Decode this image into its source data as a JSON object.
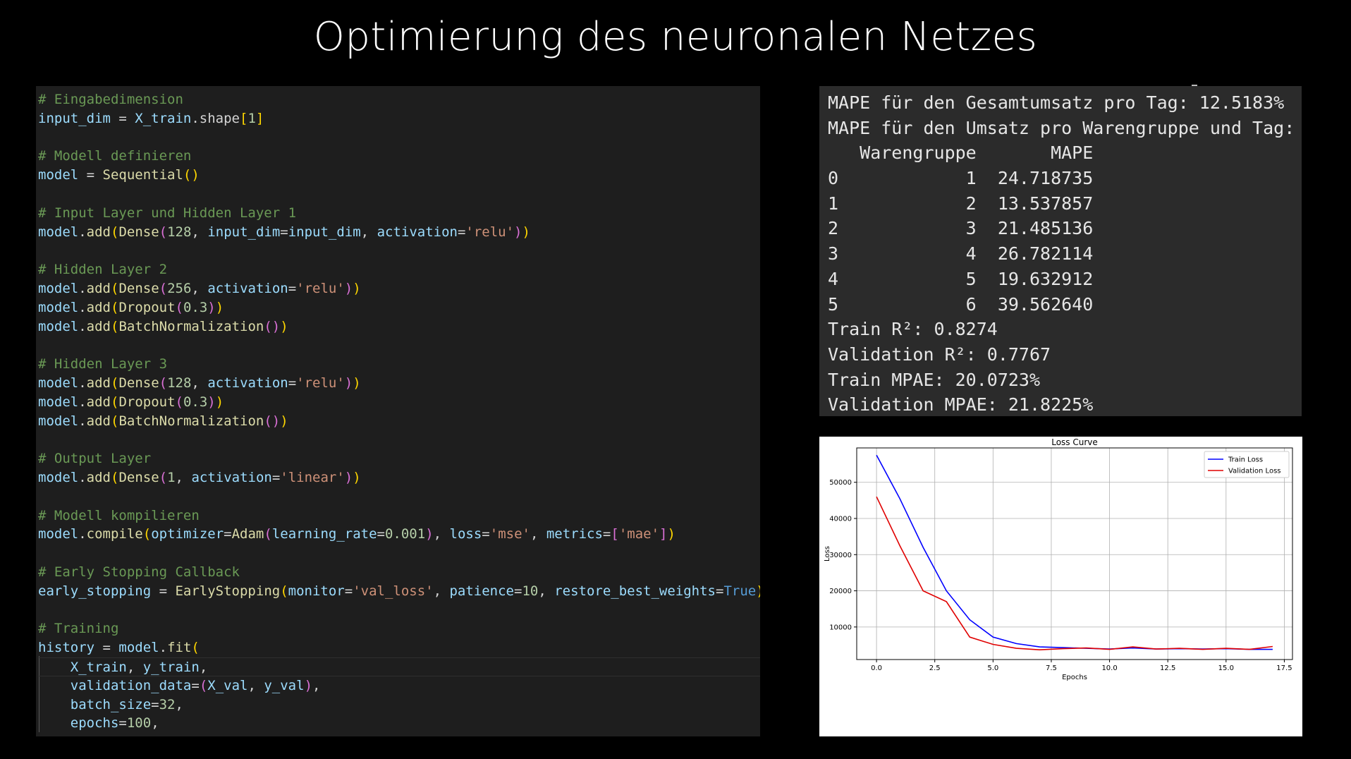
{
  "slide": {
    "title": "Optimierung des neuronalen Netzes"
  },
  "code": {
    "lines": [
      [
        {
          "t": "# Eingabedimension",
          "c": "comment"
        }
      ],
      [
        {
          "t": "input_dim",
          "c": "var"
        },
        {
          "t": " = ",
          "c": "op"
        },
        {
          "t": "X_train",
          "c": "var"
        },
        {
          "t": ".shape",
          "c": "op"
        },
        {
          "t": "[",
          "c": "p1"
        },
        {
          "t": "1",
          "c": "num"
        },
        {
          "t": "]",
          "c": "p1"
        }
      ],
      [],
      [
        {
          "t": "# Modell definieren",
          "c": "comment"
        }
      ],
      [
        {
          "t": "model",
          "c": "var"
        },
        {
          "t": " = ",
          "c": "op"
        },
        {
          "t": "Sequential",
          "c": "fn"
        },
        {
          "t": "()",
          "c": "p1"
        }
      ],
      [],
      [
        {
          "t": "# Input Layer und Hidden Layer 1",
          "c": "comment"
        }
      ],
      [
        {
          "t": "model",
          "c": "var"
        },
        {
          "t": ".",
          "c": "op"
        },
        {
          "t": "add",
          "c": "fn"
        },
        {
          "t": "(",
          "c": "p1"
        },
        {
          "t": "Dense",
          "c": "fn"
        },
        {
          "t": "(",
          "c": "p2"
        },
        {
          "t": "128",
          "c": "num"
        },
        {
          "t": ", ",
          "c": "op"
        },
        {
          "t": "input_dim",
          "c": "var"
        },
        {
          "t": "=",
          "c": "op"
        },
        {
          "t": "input_dim",
          "c": "var"
        },
        {
          "t": ", ",
          "c": "op"
        },
        {
          "t": "activation",
          "c": "var"
        },
        {
          "t": "=",
          "c": "op"
        },
        {
          "t": "'relu'",
          "c": "str"
        },
        {
          "t": ")",
          "c": "p2"
        },
        {
          "t": ")",
          "c": "p1"
        }
      ],
      [],
      [
        {
          "t": "# Hidden Layer 2",
          "c": "comment"
        }
      ],
      [
        {
          "t": "model",
          "c": "var"
        },
        {
          "t": ".",
          "c": "op"
        },
        {
          "t": "add",
          "c": "fn"
        },
        {
          "t": "(",
          "c": "p1"
        },
        {
          "t": "Dense",
          "c": "fn"
        },
        {
          "t": "(",
          "c": "p2"
        },
        {
          "t": "256",
          "c": "num"
        },
        {
          "t": ", ",
          "c": "op"
        },
        {
          "t": "activation",
          "c": "var"
        },
        {
          "t": "=",
          "c": "op"
        },
        {
          "t": "'relu'",
          "c": "str"
        },
        {
          "t": ")",
          "c": "p2"
        },
        {
          "t": ")",
          "c": "p1"
        }
      ],
      [
        {
          "t": "model",
          "c": "var"
        },
        {
          "t": ".",
          "c": "op"
        },
        {
          "t": "add",
          "c": "fn"
        },
        {
          "t": "(",
          "c": "p1"
        },
        {
          "t": "Dropout",
          "c": "fn"
        },
        {
          "t": "(",
          "c": "p2"
        },
        {
          "t": "0.3",
          "c": "num"
        },
        {
          "t": ")",
          "c": "p2"
        },
        {
          "t": ")",
          "c": "p1"
        }
      ],
      [
        {
          "t": "model",
          "c": "var"
        },
        {
          "t": ".",
          "c": "op"
        },
        {
          "t": "add",
          "c": "fn"
        },
        {
          "t": "(",
          "c": "p1"
        },
        {
          "t": "BatchNormalization",
          "c": "fn"
        },
        {
          "t": "()",
          "c": "p2"
        },
        {
          "t": ")",
          "c": "p1"
        }
      ],
      [],
      [
        {
          "t": "# Hidden Layer 3",
          "c": "comment"
        }
      ],
      [
        {
          "t": "model",
          "c": "var"
        },
        {
          "t": ".",
          "c": "op"
        },
        {
          "t": "add",
          "c": "fn"
        },
        {
          "t": "(",
          "c": "p1"
        },
        {
          "t": "Dense",
          "c": "fn"
        },
        {
          "t": "(",
          "c": "p2"
        },
        {
          "t": "128",
          "c": "num"
        },
        {
          "t": ", ",
          "c": "op"
        },
        {
          "t": "activation",
          "c": "var"
        },
        {
          "t": "=",
          "c": "op"
        },
        {
          "t": "'relu'",
          "c": "str"
        },
        {
          "t": ")",
          "c": "p2"
        },
        {
          "t": ")",
          "c": "p1"
        }
      ],
      [
        {
          "t": "model",
          "c": "var"
        },
        {
          "t": ".",
          "c": "op"
        },
        {
          "t": "add",
          "c": "fn"
        },
        {
          "t": "(",
          "c": "p1"
        },
        {
          "t": "Dropout",
          "c": "fn"
        },
        {
          "t": "(",
          "c": "p2"
        },
        {
          "t": "0.3",
          "c": "num"
        },
        {
          "t": ")",
          "c": "p2"
        },
        {
          "t": ")",
          "c": "p1"
        }
      ],
      [
        {
          "t": "model",
          "c": "var"
        },
        {
          "t": ".",
          "c": "op"
        },
        {
          "t": "add",
          "c": "fn"
        },
        {
          "t": "(",
          "c": "p1"
        },
        {
          "t": "BatchNormalization",
          "c": "fn"
        },
        {
          "t": "()",
          "c": "p2"
        },
        {
          "t": ")",
          "c": "p1"
        }
      ],
      [],
      [
        {
          "t": "# Output Layer",
          "c": "comment"
        }
      ],
      [
        {
          "t": "model",
          "c": "var"
        },
        {
          "t": ".",
          "c": "op"
        },
        {
          "t": "add",
          "c": "fn"
        },
        {
          "t": "(",
          "c": "p1"
        },
        {
          "t": "Dense",
          "c": "fn"
        },
        {
          "t": "(",
          "c": "p2"
        },
        {
          "t": "1",
          "c": "num"
        },
        {
          "t": ", ",
          "c": "op"
        },
        {
          "t": "activation",
          "c": "var"
        },
        {
          "t": "=",
          "c": "op"
        },
        {
          "t": "'linear'",
          "c": "str"
        },
        {
          "t": ")",
          "c": "p2"
        },
        {
          "t": ")",
          "c": "p1"
        }
      ],
      [],
      [
        {
          "t": "# Modell kompilieren",
          "c": "comment"
        }
      ],
      [
        {
          "t": "model",
          "c": "var"
        },
        {
          "t": ".",
          "c": "op"
        },
        {
          "t": "compile",
          "c": "fn"
        },
        {
          "t": "(",
          "c": "p1"
        },
        {
          "t": "optimizer",
          "c": "var"
        },
        {
          "t": "=",
          "c": "op"
        },
        {
          "t": "Adam",
          "c": "fn"
        },
        {
          "t": "(",
          "c": "p2"
        },
        {
          "t": "learning_rate",
          "c": "var"
        },
        {
          "t": "=",
          "c": "op"
        },
        {
          "t": "0.001",
          "c": "num"
        },
        {
          "t": ")",
          "c": "p2"
        },
        {
          "t": ", ",
          "c": "op"
        },
        {
          "t": "loss",
          "c": "var"
        },
        {
          "t": "=",
          "c": "op"
        },
        {
          "t": "'mse'",
          "c": "str"
        },
        {
          "t": ", ",
          "c": "op"
        },
        {
          "t": "metrics",
          "c": "var"
        },
        {
          "t": "=",
          "c": "op"
        },
        {
          "t": "[",
          "c": "p2"
        },
        {
          "t": "'mae'",
          "c": "str"
        },
        {
          "t": "]",
          "c": "p2"
        },
        {
          "t": ")",
          "c": "p1"
        }
      ],
      [],
      [
        {
          "t": "# Early Stopping Callback",
          "c": "comment"
        }
      ],
      [
        {
          "t": "early_stopping",
          "c": "var"
        },
        {
          "t": " = ",
          "c": "op"
        },
        {
          "t": "EarlyStopping",
          "c": "fn"
        },
        {
          "t": "(",
          "c": "p1"
        },
        {
          "t": "monitor",
          "c": "var"
        },
        {
          "t": "=",
          "c": "op"
        },
        {
          "t": "'val_loss'",
          "c": "str"
        },
        {
          "t": ", ",
          "c": "op"
        },
        {
          "t": "patience",
          "c": "var"
        },
        {
          "t": "=",
          "c": "op"
        },
        {
          "t": "10",
          "c": "num"
        },
        {
          "t": ", ",
          "c": "op"
        },
        {
          "t": "restore_best_weights",
          "c": "var"
        },
        {
          "t": "=",
          "c": "op"
        },
        {
          "t": "True",
          "c": "const"
        },
        {
          "t": ")",
          "c": "p1"
        }
      ],
      [],
      [
        {
          "t": "# Training",
          "c": "comment"
        }
      ],
      [
        {
          "t": "history",
          "c": "var"
        },
        {
          "t": " = ",
          "c": "op"
        },
        {
          "t": "model",
          "c": "var"
        },
        {
          "t": ".",
          "c": "op"
        },
        {
          "t": "fit",
          "c": "fn"
        },
        {
          "t": "(",
          "c": "p1"
        }
      ],
      [
        {
          "t": "    ",
          "c": "op"
        },
        {
          "t": "X_train",
          "c": "var"
        },
        {
          "t": ", ",
          "c": "op"
        },
        {
          "t": "y_train",
          "c": "var"
        },
        {
          "t": ",",
          "c": "op"
        }
      ],
      [
        {
          "t": "    ",
          "c": "op"
        },
        {
          "t": "validation_data",
          "c": "var"
        },
        {
          "t": "=",
          "c": "op"
        },
        {
          "t": "(",
          "c": "p2"
        },
        {
          "t": "X_val",
          "c": "var"
        },
        {
          "t": ", ",
          "c": "op"
        },
        {
          "t": "y_val",
          "c": "var"
        },
        {
          "t": ")",
          "c": "p2"
        },
        {
          "t": ",",
          "c": "op"
        }
      ],
      [
        {
          "t": "    ",
          "c": "op"
        },
        {
          "t": "batch_size",
          "c": "var"
        },
        {
          "t": "=",
          "c": "op"
        },
        {
          "t": "32",
          "c": "num"
        },
        {
          "t": ",",
          "c": "op"
        }
      ],
      [
        {
          "t": "    ",
          "c": "op"
        },
        {
          "t": "epochs",
          "c": "var"
        },
        {
          "t": "=",
          "c": "op"
        },
        {
          "t": "100",
          "c": "num"
        },
        {
          "t": ",",
          "c": "op"
        }
      ]
    ]
  },
  "output": {
    "lines": [
      "MAPE für den Gesamtumsatz pro Tag: 12.5183%",
      "MAPE für den Umsatz pro Warengruppe und Tag:",
      "   Warengruppe       MAPE",
      "0            1  24.718735",
      "1            2  13.537857",
      "2            3  21.485136",
      "3            4  26.782114",
      "4            5  19.632912",
      "5            6  39.562640",
      "Train R²: 0.8274",
      "Validation R²: 0.7767",
      "Train MPAE: 20.0723%",
      "Validation MPAE: 21.8225%"
    ]
  },
  "colors": {
    "train": "#0000ff",
    "validation": "#e00000"
  },
  "chart_data": {
    "type": "line",
    "title": "Loss Curve",
    "xlabel": "Epochs",
    "ylabel": "Loss",
    "xlim": [
      -0.85,
      17.85
    ],
    "ylim": [
      1000,
      59500
    ],
    "xticks": [
      0.0,
      2.5,
      5.0,
      7.5,
      10.0,
      12.5,
      15.0,
      17.5
    ],
    "xtick_labels": [
      "0.0",
      "2.5",
      "5.0",
      "7.5",
      "10.0",
      "12.5",
      "15.0",
      "17.5"
    ],
    "yticks": [
      10000,
      20000,
      30000,
      40000,
      50000
    ],
    "ytick_labels": [
      "10000",
      "20000",
      "30000",
      "40000",
      "50000"
    ],
    "grid": true,
    "legend": "top-right",
    "x": [
      0,
      1,
      2,
      3,
      4,
      5,
      6,
      7,
      8,
      9,
      10,
      11,
      12,
      13,
      14,
      15,
      16,
      17
    ],
    "series": [
      {
        "name": "Train Loss",
        "color_key": "train",
        "values": [
          57500,
          45500,
          32000,
          20000,
          12000,
          7200,
          5400,
          4500,
          4300,
          4100,
          3900,
          4200,
          3900,
          4000,
          3900,
          4000,
          3800,
          3800
        ]
      },
      {
        "name": "Validation Loss",
        "color_key": "validation",
        "values": [
          46000,
          32500,
          20000,
          17000,
          7200,
          5200,
          4100,
          3700,
          4000,
          4200,
          3800,
          4500,
          3900,
          4100,
          3800,
          4100,
          3800,
          4600
        ]
      }
    ]
  }
}
